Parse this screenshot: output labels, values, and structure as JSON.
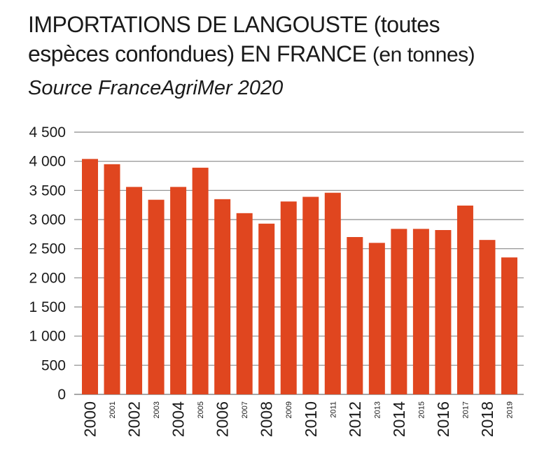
{
  "chart_data": {
    "type": "bar",
    "title_line1": "IMPORTATIONS DE LANGOUSTE (toutes",
    "title_line2_part1": "espèces confondues) EN FRANCE ",
    "title_line2_part2": "(en tonnes)",
    "subtitle": "Source FranceAgriMer 2020",
    "xlabel": "",
    "ylabel": "",
    "ylim": [
      0,
      4500
    ],
    "yticks": [
      0,
      500,
      1000,
      1500,
      2000,
      2500,
      3000,
      3500,
      4000,
      4500
    ],
    "ytick_labels": [
      "0",
      "500",
      "1 000",
      "1 500",
      "2 000",
      "2 500",
      "3 000",
      "3 500",
      "4 000",
      "4 500"
    ],
    "grid": true,
    "categories": [
      "2000",
      "2001",
      "2002",
      "2003",
      "2004",
      "2005",
      "2006",
      "2007",
      "2008",
      "2009",
      "2010",
      "2011",
      "2012",
      "2013",
      "2014",
      "2015",
      "2016",
      "2017",
      "2018",
      "2019"
    ],
    "values": [
      4040,
      3950,
      3560,
      3340,
      3560,
      3890,
      3350,
      3110,
      2930,
      3310,
      3390,
      3460,
      2700,
      2600,
      2840,
      2840,
      2820,
      3240,
      2650,
      2350
    ],
    "bar_color": "#e0461f",
    "grid_color": "#8a8a8a"
  }
}
